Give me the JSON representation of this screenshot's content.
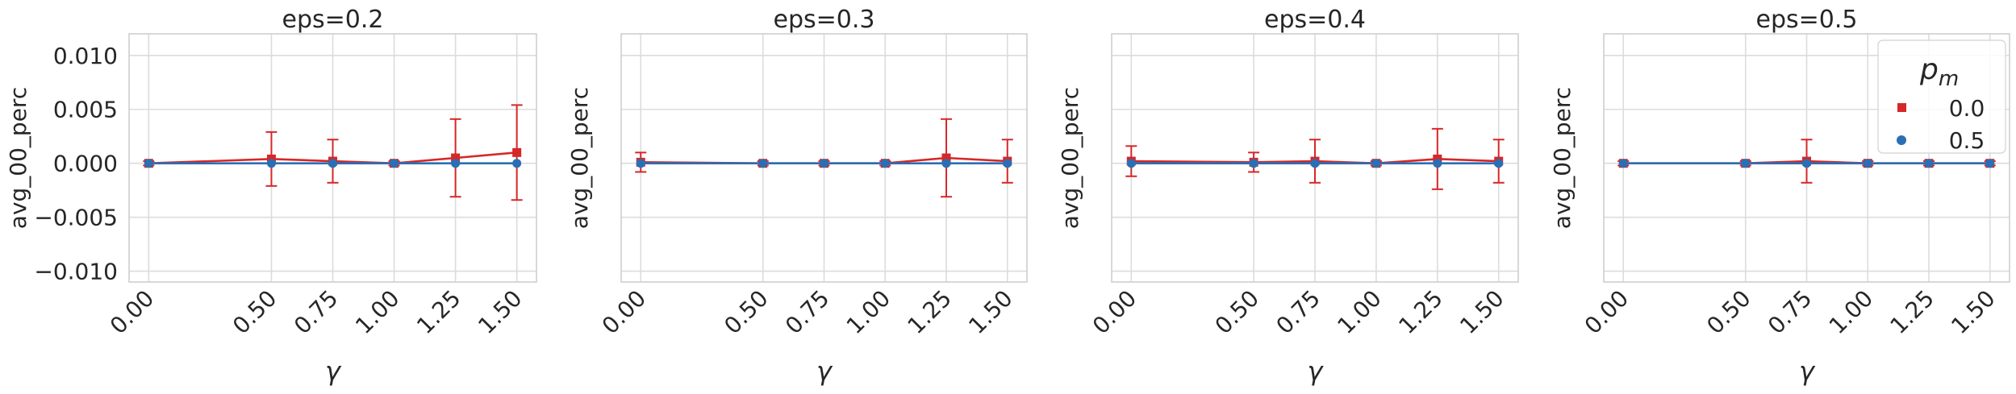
{
  "colors": {
    "series_0": "#d62728",
    "series_1": "#2a6fb5"
  },
  "chart_data": [
    {
      "type": "line",
      "title": "eps=0.2",
      "xlabel": "γ",
      "ylabel": "avg_00_perc",
      "xticks": [
        "0.00",
        "0.50",
        "0.75",
        "1.00",
        "1.25",
        "1.50"
      ],
      "yticks": [
        "−0.010",
        "−0.005",
        "0.000",
        "0.005",
        "0.010"
      ],
      "show_ytick_labels": true,
      "xlim": [
        -0.08,
        1.58
      ],
      "ylim": [
        -0.011,
        0.012
      ],
      "grid": true,
      "series": [
        {
          "name": "0.0",
          "marker": "square",
          "x": [
            0.0,
            0.5,
            0.75,
            1.0,
            1.25,
            1.5
          ],
          "y": [
            0.0,
            0.0004,
            0.0002,
            0.0,
            0.0005,
            0.001
          ],
          "err": [
            0.0002,
            0.0025,
            0.002,
            0.0002,
            0.0036,
            0.0044
          ]
        },
        {
          "name": "0.5",
          "marker": "circle",
          "x": [
            0.0,
            0.5,
            0.75,
            1.0,
            1.25,
            1.5
          ],
          "y": [
            0.0,
            0.0,
            0.0,
            0.0,
            0.0,
            0.0
          ],
          "err": [
            0,
            0,
            0,
            0,
            0,
            0
          ]
        }
      ]
    },
    {
      "type": "line",
      "title": "eps=0.3",
      "xlabel": "γ",
      "ylabel": "avg_00_perc",
      "xticks": [
        "0.00",
        "0.50",
        "0.75",
        "1.00",
        "1.25",
        "1.50"
      ],
      "yticks": [],
      "show_ytick_labels": false,
      "xlim": [
        -0.08,
        1.58
      ],
      "ylim": [
        -0.011,
        0.012
      ],
      "grid": true,
      "series": [
        {
          "name": "0.0",
          "marker": "square",
          "x": [
            0.0,
            0.5,
            0.75,
            1.0,
            1.25,
            1.5
          ],
          "y": [
            0.0001,
            0.0,
            0.0,
            0.0,
            0.0005,
            0.0002
          ],
          "err": [
            0.0009,
            0.0002,
            0.0002,
            0.0002,
            0.0036,
            0.002
          ]
        },
        {
          "name": "0.5",
          "marker": "circle",
          "x": [
            0.0,
            0.5,
            0.75,
            1.0,
            1.25,
            1.5
          ],
          "y": [
            0.0,
            0.0,
            0.0,
            0.0,
            0.0,
            0.0
          ],
          "err": [
            0,
            0,
            0,
            0,
            0,
            0
          ]
        }
      ]
    },
    {
      "type": "line",
      "title": "eps=0.4",
      "xlabel": "γ",
      "ylabel": "avg_00_perc",
      "xticks": [
        "0.00",
        "0.50",
        "0.75",
        "1.00",
        "1.25",
        "1.50"
      ],
      "yticks": [],
      "show_ytick_labels": false,
      "xlim": [
        -0.08,
        1.58
      ],
      "ylim": [
        -0.011,
        0.012
      ],
      "grid": true,
      "series": [
        {
          "name": "0.0",
          "marker": "square",
          "x": [
            0.0,
            0.5,
            0.75,
            1.0,
            1.25,
            1.5
          ],
          "y": [
            0.0002,
            0.0001,
            0.0002,
            0.0,
            0.0004,
            0.0002
          ],
          "err": [
            0.0014,
            0.0009,
            0.002,
            0.0002,
            0.0028,
            0.002
          ]
        },
        {
          "name": "0.5",
          "marker": "circle",
          "x": [
            0.0,
            0.5,
            0.75,
            1.0,
            1.25,
            1.5
          ],
          "y": [
            0.0,
            0.0,
            0.0,
            0.0,
            0.0,
            0.0
          ],
          "err": [
            0,
            0,
            0,
            0,
            0,
            0
          ]
        }
      ]
    },
    {
      "type": "line",
      "title": "eps=0.5",
      "xlabel": "γ",
      "ylabel": "avg_00_perc",
      "xticks": [
        "0.00",
        "0.50",
        "0.75",
        "1.00",
        "1.25",
        "1.50"
      ],
      "yticks": [],
      "show_ytick_labels": false,
      "xlim": [
        -0.08,
        1.58
      ],
      "ylim": [
        -0.011,
        0.012
      ],
      "grid": true,
      "legend": {
        "title": "p_m",
        "placement": "top-right"
      },
      "series": [
        {
          "name": "0.0",
          "marker": "square",
          "x": [
            0.0,
            0.5,
            0.75,
            1.0,
            1.25,
            1.5
          ],
          "y": [
            0.0,
            0.0,
            0.0002,
            0.0,
            0.0,
            0.0
          ],
          "err": [
            0.0002,
            0.0002,
            0.002,
            0.0002,
            0.0002,
            0.0002
          ]
        },
        {
          "name": "0.5",
          "marker": "circle",
          "x": [
            0.0,
            0.5,
            0.75,
            1.0,
            1.25,
            1.5
          ],
          "y": [
            0.0,
            0.0,
            0.0,
            0.0,
            0.0,
            0.0
          ],
          "err": [
            0,
            0,
            0,
            0,
            0,
            0
          ]
        }
      ]
    }
  ]
}
